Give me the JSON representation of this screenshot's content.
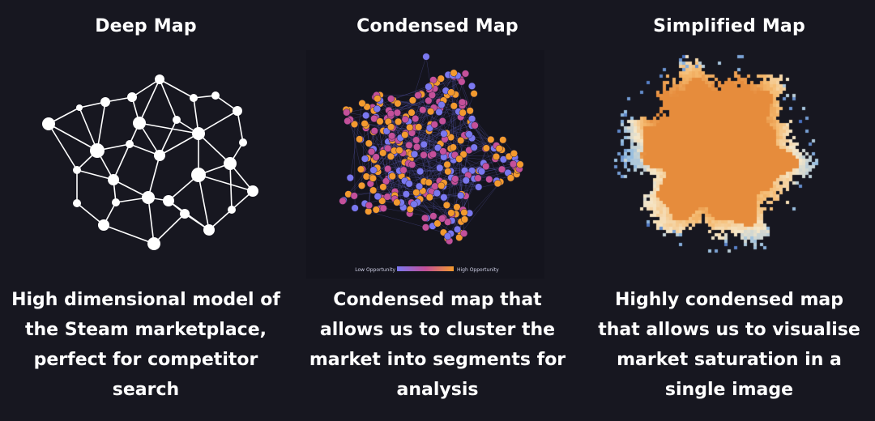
{
  "panels": [
    {
      "title": "Deep Map",
      "description": "High dimensional model of the Steam marketplace, perfect for competitor search"
    },
    {
      "title": "Condensed Map",
      "description": "Condensed map that allows us to cluster the market into segments for analysis",
      "legend": {
        "low_label": "Low Opportunity",
        "high_label": "High Opportunity"
      }
    },
    {
      "title": "Simplified Map",
      "description": "Highly condensed map that allows us to visualise market saturation in a single image"
    }
  ],
  "colors": {
    "background": "#171720",
    "network": "#ffffff",
    "low_opportunity": "#7a78f0",
    "mid_opportunity": "#c4509a",
    "high_opportunity": "#f39a2e",
    "heat_low": "#5b8bd0",
    "heat_high": "#f0a04a"
  }
}
